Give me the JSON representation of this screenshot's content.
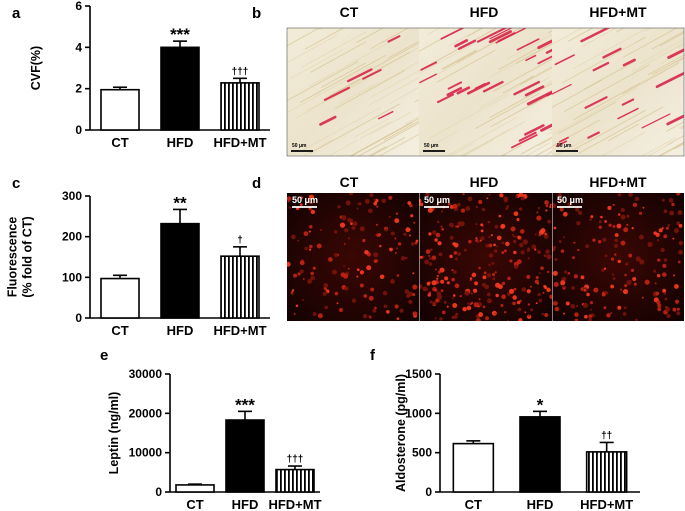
{
  "panel_labels": {
    "a": "a",
    "b": "b",
    "c": "c",
    "d": "d",
    "e": "e",
    "f": "f"
  },
  "colors": {
    "hfd_fill": "#000000",
    "ct_fill": "#ffffff",
    "mt_pattern": "vertical-stripes",
    "stain_red": "#d8264a",
    "fluor_red": "#e0281a"
  },
  "chart_data": [
    {
      "panel": "a",
      "type": "bar",
      "categories": [
        "CT",
        "HFD",
        "HFD+MT"
      ],
      "values": [
        1.95,
        4.0,
        2.28
      ],
      "errors": [
        0.12,
        0.3,
        0.22
      ],
      "annotations": [
        "",
        "***",
        "†††"
      ],
      "xlabel": "",
      "ylabel": "CVF(%)",
      "ylim": [
        0,
        6
      ],
      "yticks": [
        "0",
        "2",
        "4",
        "6"
      ],
      "grid": false
    },
    {
      "panel": "c",
      "type": "bar",
      "categories": [
        "CT",
        "HFD",
        "HFD+MT"
      ],
      "values": [
        97,
        232,
        152
      ],
      "errors": [
        8,
        35,
        23
      ],
      "annotations": [
        "",
        "**",
        "†"
      ],
      "xlabel": "",
      "ylabel": [
        "Fluorescence",
        "(% fold of CT)"
      ],
      "ylim": [
        0,
        300
      ],
      "yticks": [
        "0",
        "100",
        "200",
        "300"
      ],
      "grid": false
    },
    {
      "panel": "e",
      "type": "bar",
      "categories": [
        "CT",
        "HFD",
        "HFD+MT"
      ],
      "values": [
        1800,
        18300,
        5700
      ],
      "errors": [
        200,
        2200,
        900
      ],
      "annotations": [
        "",
        "***",
        "†††"
      ],
      "xlabel": "",
      "ylabel": "Leptin  (ng/ml)",
      "ylim": [
        0,
        30000
      ],
      "yticks": [
        "0",
        "10000",
        "20000",
        "30000"
      ],
      "grid": false
    },
    {
      "panel": "f",
      "type": "bar",
      "categories": [
        "CT",
        "HFD",
        "HFD+MT"
      ],
      "values": [
        615,
        955,
        510
      ],
      "errors": [
        35,
        70,
        120
      ],
      "annotations": [
        "",
        "*",
        "††"
      ],
      "xlabel": "",
      "ylabel": "Aldosterone (pg/ml)",
      "ylim": [
        0,
        1500
      ],
      "yticks": [
        "0",
        "500",
        "1000",
        "1500"
      ],
      "grid": false
    }
  ],
  "micrographs": {
    "b": {
      "titles": [
        "CT",
        "HFD",
        "HFD+MT"
      ],
      "scale_text": [
        "50 μm",
        "50 μm",
        "50 μm"
      ]
    },
    "d": {
      "titles": [
        "CT",
        "HFD",
        "HFD+MT"
      ],
      "scale_text": [
        "50 μm",
        "50 μm",
        "50 μm"
      ]
    }
  }
}
